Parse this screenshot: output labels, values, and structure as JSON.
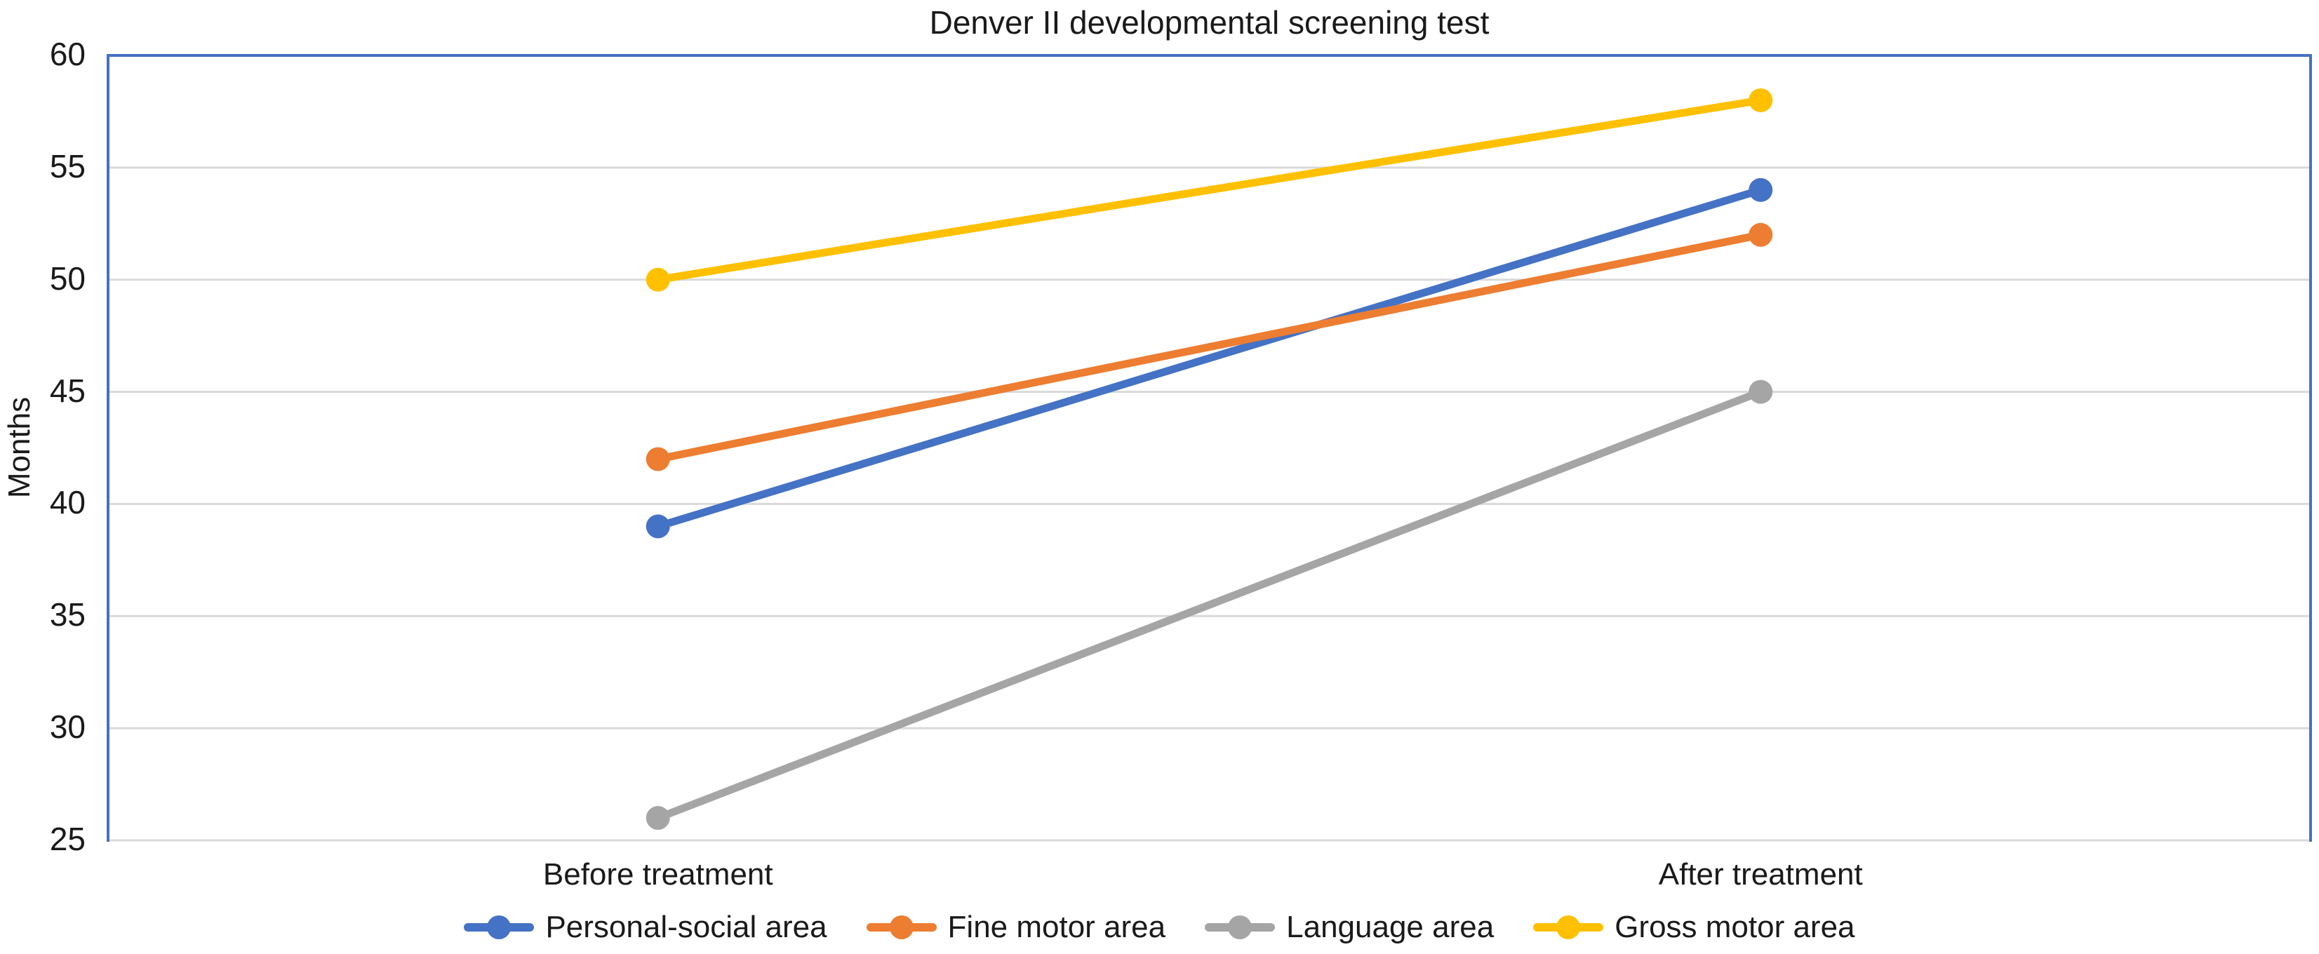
{
  "chart_data": {
    "type": "line",
    "title": "Denver II developmental screening test",
    "xlabel": "",
    "ylabel": "Months",
    "categories": [
      "Before treatment",
      "After treatment"
    ],
    "series": [
      {
        "name": "Personal-social area",
        "color": "#4472C4",
        "values": [
          39,
          54
        ]
      },
      {
        "name": "Fine motor area",
        "color": "#ED7D31",
        "values": [
          42,
          52
        ]
      },
      {
        "name": "Language area",
        "color": "#A5A5A5",
        "values": [
          26,
          45
        ]
      },
      {
        "name": "Gross motor area",
        "color": "#FFC000",
        "values": [
          50,
          58
        ]
      }
    ],
    "ylim": [
      25,
      60
    ],
    "yticks": [
      60,
      55,
      50,
      45,
      40,
      35,
      30,
      25
    ],
    "grid": true,
    "legend_position": "bottom",
    "colors": {
      "plot_border": "#4472C4",
      "gridline": "#D9D9D9",
      "text": "#1a1a1a",
      "background": "#FFFFFF"
    }
  }
}
